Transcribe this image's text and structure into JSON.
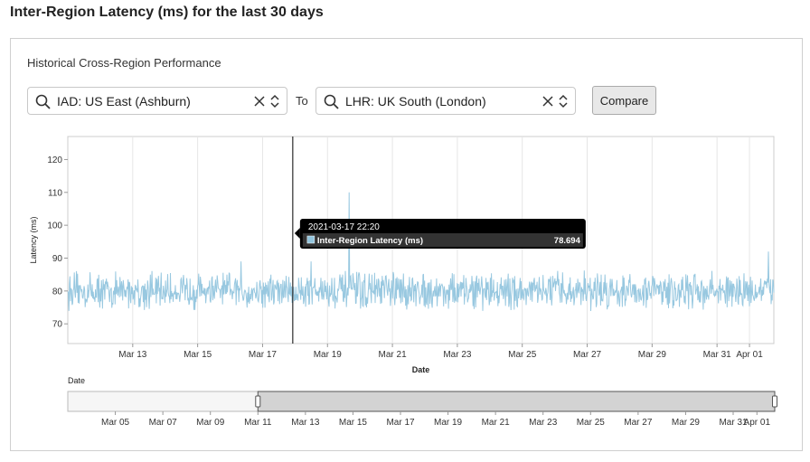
{
  "page": {
    "title": "Inter-Region Latency (ms) for the last 30 days"
  },
  "panel": {
    "subtitle": "Historical Cross-Region Performance"
  },
  "controls": {
    "from_region": "IAD: US East (Ashburn)",
    "to_label": "To",
    "to_region": "LHR: UK South (London)",
    "compare_label": "Compare"
  },
  "icons": {
    "search": "search-icon",
    "clear": "close-icon",
    "sort": "up-down-chevron-icon",
    "legend_swatch": "square-swatch-icon"
  },
  "colors": {
    "series": "#92c5de",
    "tooltip_bg": "#000000",
    "navigator_window": "#d3d3d3"
  },
  "chart_data": {
    "type": "line",
    "ylabel": "Latency (ms)",
    "xlabel": "Date",
    "y_ticks": [
      70,
      80,
      90,
      100,
      110,
      120
    ],
    "x_ticks": [
      "Mar 13",
      "Mar 15",
      "Mar 17",
      "Mar 19",
      "Mar 21",
      "Mar 23",
      "Mar 25",
      "Mar 27",
      "Mar 29",
      "Mar 31",
      "Apr 01"
    ],
    "x_range": [
      "2021-03-11 00:00",
      "2021-04-01 18:00"
    ],
    "ylim": [
      64,
      127
    ],
    "grid": true,
    "series": [
      {
        "name": "Inter-Region Latency (ms)",
        "color": "#92c5de",
        "typical_range": [
          74,
          86
        ],
        "spikes": [
          {
            "x": "2021-03-19 16:00",
            "y": 110
          },
          {
            "x": "2021-03-18 12:00",
            "y": 89
          },
          {
            "x": "2021-04-01 14:00",
            "y": 92
          },
          {
            "x": "2021-03-16 08:00",
            "y": 89
          }
        ]
      }
    ],
    "tooltip": {
      "date": "2021-03-17 22:20",
      "series": "Inter-Region Latency (ms)",
      "value": "78.694"
    },
    "navigator": {
      "label": "Date",
      "ticks": [
        "Mar 05",
        "Mar 07",
        "Mar 09",
        "Mar 11",
        "Mar 13",
        "Mar 15",
        "Mar 17",
        "Mar 19",
        "Mar 21",
        "Mar 23",
        "Mar 25",
        "Mar 27",
        "Mar 29",
        "Mar 31",
        "Apr 01"
      ],
      "x_range": [
        "2021-03-03 00:00",
        "2021-04-01 18:00"
      ],
      "selected_range": [
        "2021-03-11 00:00",
        "2021-04-01 18:00"
      ]
    }
  }
}
